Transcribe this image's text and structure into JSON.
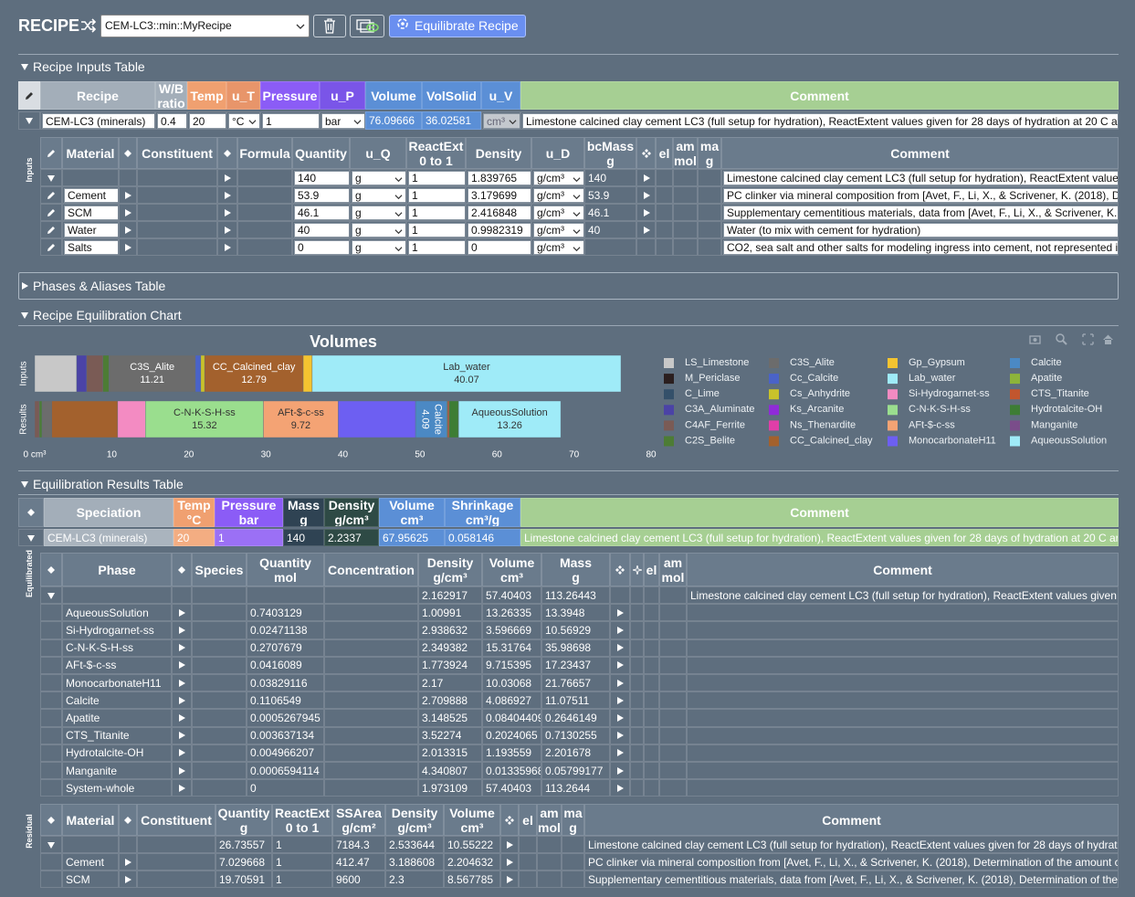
{
  "header": {
    "title": "RECIPE",
    "recipe_select": "CEM-LC3::min::MyRecipe",
    "equilibrate_button": "Equilibrate Recipe"
  },
  "recipe_inputs": {
    "title": "Recipe Inputs Table",
    "headers": [
      "Recipe",
      [
        "W/B",
        "ratio"
      ],
      "Temp",
      "u_T",
      "Pressure",
      "u_P",
      "Volume",
      "VolSolid",
      "u_V",
      "Comment"
    ],
    "rows": [
      [
        "CEM-LC3 (minerals)",
        "0.4",
        "20",
        "°C",
        "1",
        "bar",
        "76.09666",
        "36.02581",
        "cm³",
        "Limestone calcined clay cement LC3 (full setup for hydration), ReactExtent values given for 28 days of hydration at 20 C ar"
      ]
    ]
  },
  "inputs": {
    "side_label": "Inputs",
    "headers": [
      "Material",
      "Constituent",
      "Formula",
      "Quantity",
      "u_Q",
      [
        "ReactExt",
        "0 to 1"
      ],
      "Density",
      "u_D",
      [
        "bcMass",
        "g"
      ],
      "el",
      [
        "am",
        "mol"
      ],
      [
        "ma",
        "g"
      ],
      "Comment"
    ],
    "rows": [
      [
        null,
        "140",
        "g",
        "1",
        "1.839765",
        "g/cm³",
        "140",
        "Limestone calcined clay cement LC3 (full setup for hydration), ReactExtent value"
      ],
      [
        "Cement",
        "53.9",
        "g",
        "1",
        "3.179699",
        "g/cm³",
        "53.9",
        "PC clinker via mineral composition from [Avet, F., Li, X., & Scrivener, K. (2018), D"
      ],
      [
        "SCM",
        "46.1",
        "g",
        "1",
        "2.416848",
        "g/cm³",
        "46.1",
        "Supplementary cementitious materials, data from [Avet, F., Li, X., & Scrivener, K."
      ],
      [
        "Water",
        "40",
        "g",
        "1",
        "0.9982319",
        "g/cm³",
        "40",
        "Water (to mix with cement for hydration)"
      ],
      [
        "Salts",
        "0",
        "g",
        "1",
        "0",
        "g/cm³",
        null,
        "CO2, sea salt and other salts for modeling ingress into cement, not represented i"
      ]
    ]
  },
  "phases_aliases": {
    "title": "Phases & Aliases Table"
  },
  "equilibration_chart": {
    "title": "Recipe Equilibration Chart"
  },
  "chart_data": {
    "type": "bar",
    "orientation": "horizontal",
    "barmode": "stack",
    "title": "Volumes",
    "categories": [
      "Inputs",
      "Results"
    ],
    "xlim": [
      0,
      80
    ],
    "xticks": [
      {
        "value": 0,
        "label": "0 cm³"
      },
      10,
      20,
      30,
      40,
      50,
      60,
      70,
      80
    ],
    "legend": true,
    "series": [
      {
        "name": "LS_Limestone",
        "color": "#c8c8c8",
        "values": [
          5.45,
          null
        ]
      },
      {
        "name": "M_Periclase",
        "color": "#2b1f1f",
        "values": [
          null,
          null
        ]
      },
      {
        "name": "C_Lime",
        "color": "#34506a",
        "values": [
          null,
          null
        ]
      },
      {
        "name": "C3A_Aluminate",
        "color": "#4b43a6",
        "values": [
          1.3,
          null
        ]
      },
      {
        "name": "C4AF_Ferrite",
        "color": "#7a5b55",
        "values": [
          2.1,
          0.6
        ]
      },
      {
        "name": "C2S_Belite",
        "color": "#4d7c35",
        "values": [
          0.8,
          0.35
        ]
      },
      {
        "name": "C3S_Alite",
        "color": "#6c6c6c",
        "values": [
          11.21,
          1.254632
        ],
        "value_labels": [
          "11.21",
          null
        ]
      },
      {
        "name": "Cc_Calcite",
        "color": "#4a63c8",
        "values": [
          0.7,
          null
        ]
      },
      {
        "name": "Cs_Anhydrite",
        "color": "#c9c22a",
        "values": [
          0.5,
          null
        ]
      },
      {
        "name": "Ks_Arcanite",
        "color": "#8f2bd8",
        "values": [
          null,
          null
        ]
      },
      {
        "name": "Ns_Thenardite",
        "color": "#e03ea8",
        "values": [
          null,
          null
        ]
      },
      {
        "name": "CC_Calcined_clay",
        "color": "#a3612d",
        "values": [
          12.79,
          8.567785
        ],
        "value_labels": [
          "12.79",
          null
        ]
      },
      {
        "name": "Gp_Gypsum",
        "color": "#f4c430",
        "values": [
          1.17,
          null
        ]
      },
      {
        "name": "Lab_water",
        "color": "#9febf8",
        "values": [
          40.07,
          null
        ],
        "value_labels": [
          "40.07",
          null
        ]
      },
      {
        "name": "Si-Hydrogarnet-ss",
        "color": "#f38bc2",
        "values": [
          null,
          3.596669
        ]
      },
      {
        "name": "C-N-K-S-H-ss",
        "color": "#9ade8e",
        "values": [
          null,
          15.31764
        ],
        "value_labels": [
          null,
          "15.32"
        ]
      },
      {
        "name": "AFt-$-c-ss",
        "color": "#f4a374",
        "values": [
          null,
          9.715395
        ],
        "value_labels": [
          null,
          "9.72"
        ]
      },
      {
        "name": "MonocarbonateH11",
        "color": "#6d5ff2",
        "values": [
          null,
          10.03068
        ]
      },
      {
        "name": "Calcite",
        "color": "#4b89c4",
        "values": [
          null,
          4.086927
        ],
        "value_labels": [
          null,
          "4.09"
        ]
      },
      {
        "name": "Apatite",
        "color": "#8db43a",
        "values": [
          null,
          0.08404409
        ]
      },
      {
        "name": "CTS_Titanite",
        "color": "#c2562e",
        "values": [
          null,
          0.2024065
        ]
      },
      {
        "name": "Hydrotalcite-OH",
        "color": "#3d7d34",
        "values": [
          null,
          1.193559
        ]
      },
      {
        "name": "Manganite",
        "color": "#7a4d8a",
        "values": [
          null,
          0.01335968
        ]
      },
      {
        "name": "AqueousSolution",
        "color": "#9febf8",
        "values": [
          null,
          13.26335
        ],
        "value_labels": [
          null,
          "13.26"
        ]
      }
    ]
  },
  "results": {
    "title": "Equilibration Results Table",
    "headers": [
      "Speciation",
      [
        "Temp",
        "°C"
      ],
      [
        "Pressure",
        "bar"
      ],
      [
        "Mass",
        "g"
      ],
      [
        "Density",
        "g/cm³"
      ],
      [
        "Volume",
        "cm³"
      ],
      [
        "Shrinkage",
        "cm³/g"
      ],
      "Comment"
    ],
    "rows": [
      [
        "CEM-LC3 (minerals)",
        "20",
        "1",
        "140",
        "2.2337",
        "67.95625",
        "0.058146",
        "Limestone calcined clay cement LC3 (full setup for hydration), ReactExtent values given for 28 days of hydration at 20 C ar"
      ]
    ]
  },
  "equilibrated": {
    "side_label": "Equilibrated",
    "headers": [
      "Phase",
      "Species",
      [
        "Quantity",
        "mol"
      ],
      "Concentration",
      [
        "Density",
        "g/cm³"
      ],
      [
        "Volume",
        "cm³"
      ],
      [
        "Mass",
        "g"
      ],
      "el",
      [
        "am",
        "mol"
      ],
      "Comment"
    ],
    "rows": [
      [
        null,
        null,
        "2.162917",
        "57.40403",
        "113.26443",
        "Limestone calcined clay cement LC3 (full setup for hydration), ReactExtent values given"
      ],
      [
        "AqueousSolution",
        "0.7403129",
        "1.00991",
        "13.26335",
        "13.3948",
        null
      ],
      [
        "Si-Hydrogarnet-ss",
        "0.02471138",
        "2.938632",
        "3.596669",
        "10.56929",
        null
      ],
      [
        "C-N-K-S-H-ss",
        "0.2707679",
        "2.349382",
        "15.31764",
        "35.98698",
        null
      ],
      [
        "AFt-$-c-ss",
        "0.0416089",
        "1.773924",
        "9.715395",
        "17.23437",
        null
      ],
      [
        "MonocarbonateH11",
        "0.03829116",
        "2.17",
        "10.03068",
        "21.76657",
        null
      ],
      [
        "Calcite",
        "0.1106549",
        "2.709888",
        "4.086927",
        "11.07511",
        null
      ],
      [
        "Apatite",
        "0.0005267945",
        "3.148525",
        "0.08404409",
        "0.2646149",
        null
      ],
      [
        "CTS_Titanite",
        "0.003637134",
        "3.52274",
        "0.2024065",
        "0.7130255",
        null
      ],
      [
        "Hydrotalcite-OH",
        "0.004966207",
        "2.013315",
        "1.193559",
        "2.201678",
        null
      ],
      [
        "Manganite",
        "0.0006594114",
        "4.340807",
        "0.01335968",
        "0.05799177",
        null
      ],
      [
        "System-whole",
        "0",
        "1.973109",
        "57.40403",
        "113.2644",
        null
      ]
    ]
  },
  "residual": {
    "side_label": "Residual",
    "headers": [
      "Material",
      "Constituent",
      [
        "Quantity",
        "g"
      ],
      [
        "ReactExt",
        "0 to 1"
      ],
      [
        "SSArea",
        "g/cm²"
      ],
      [
        "Density",
        "g/cm³"
      ],
      [
        "Volume",
        "cm³"
      ],
      "el",
      [
        "am",
        "mol"
      ],
      [
        "ma",
        "g"
      ],
      "Comment"
    ],
    "rows": [
      [
        null,
        "26.73557",
        "1",
        "7184.3",
        "2.533644",
        "10.55222",
        "Limestone calcined clay cement LC3 (full setup for hydration), ReactExtent values given for 28 days of hydrat"
      ],
      [
        "Cement",
        "7.029668",
        "1",
        "412.47",
        "3.188608",
        "2.204632",
        "PC clinker via mineral composition from [Avet, F., Li, X., & Scrivener, K. (2018), Determination of the amount c"
      ],
      [
        "SCM",
        "19.70591",
        "1",
        "9600",
        "2.3",
        "8.567785",
        "Supplementary cementitious materials, data from [Avet, F., Li, X., & Scrivener, K. (2018), Determination of the"
      ]
    ]
  }
}
